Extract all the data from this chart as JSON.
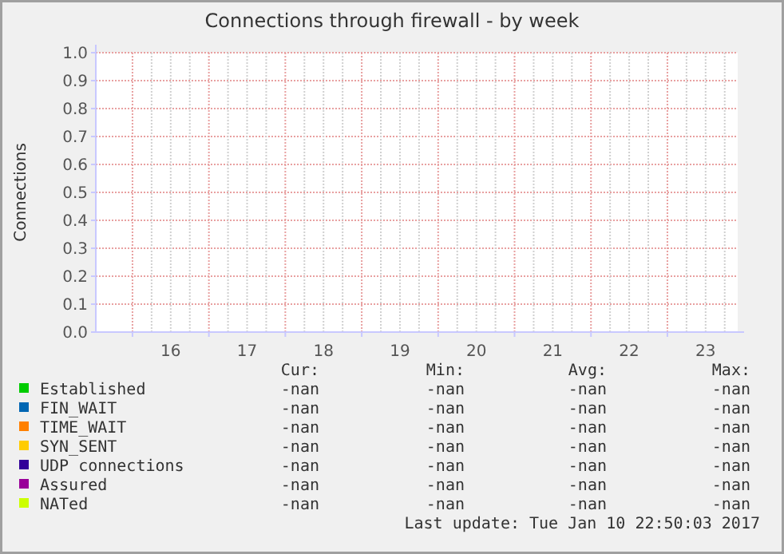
{
  "chart_data": {
    "type": "line",
    "title": "Connections through firewall - by week",
    "ylabel": "Connections",
    "categories": [
      "16",
      "17",
      "18",
      "19",
      "20",
      "21",
      "22",
      "23"
    ],
    "ylim": [
      0,
      1
    ],
    "yticks": [
      {
        "value": 0,
        "label": "0.0"
      },
      {
        "value": 0.1,
        "label": "0.1"
      },
      {
        "value": 0.2,
        "label": "0.2"
      },
      {
        "value": 0.3,
        "label": "0.3"
      },
      {
        "value": 0.4,
        "label": "0.4"
      },
      {
        "value": 0.5,
        "label": "0.5"
      },
      {
        "value": 0.6,
        "label": "0.6"
      },
      {
        "value": 0.7,
        "label": "0.7"
      },
      {
        "value": 0.8,
        "label": "0.8"
      },
      {
        "value": 0.9,
        "label": "0.9"
      },
      {
        "value": 1,
        "label": "1.0"
      }
    ],
    "grid": true,
    "legend": "bottom left",
    "annotations": [
      "Cur:",
      "Min:",
      "Avg:",
      "Max:",
      "-nan",
      "-nan",
      "-nan",
      "-nan",
      "-nan",
      "-nan",
      "-nan",
      "-nan",
      "-nan",
      "-nan",
      "-nan",
      "-nan",
      "-nan",
      "-nan",
      "-nan",
      "-nan",
      "-nan",
      "-nan",
      "-nan",
      "-nan",
      "-nan",
      "-nan",
      "-nan",
      "-nan",
      "-nan",
      "-nan",
      "-nan",
      "-nan",
      "Last update: Tue Jan 10 22:50:03 2017"
    ],
    "series": [
      {
        "name": "Established",
        "color": "#00cc00",
        "values": [
          null,
          null,
          null,
          null,
          null,
          null,
          null,
          null
        ]
      },
      {
        "name": "FIN_WAIT",
        "color": "#0066b3",
        "values": [
          null,
          null,
          null,
          null,
          null,
          null,
          null,
          null
        ]
      },
      {
        "name": "TIME_WAIT",
        "color": "#ff8000",
        "values": [
          null,
          null,
          null,
          null,
          null,
          null,
          null,
          null
        ]
      },
      {
        "name": "SYN_SENT",
        "color": "#ffcc00",
        "values": [
          null,
          null,
          null,
          null,
          null,
          null,
          null,
          null
        ]
      },
      {
        "name": "UDP connections",
        "color": "#330099",
        "values": [
          null,
          null,
          null,
          null,
          null,
          null,
          null,
          null
        ]
      },
      {
        "name": "Assured",
        "color": "#990099",
        "values": [
          null,
          null,
          null,
          null,
          null,
          null,
          null,
          null
        ]
      },
      {
        "name": "NATed",
        "color": "#ccff00",
        "values": [
          null,
          null,
          null,
          null,
          null,
          null,
          null,
          null
        ]
      }
    ]
  }
}
